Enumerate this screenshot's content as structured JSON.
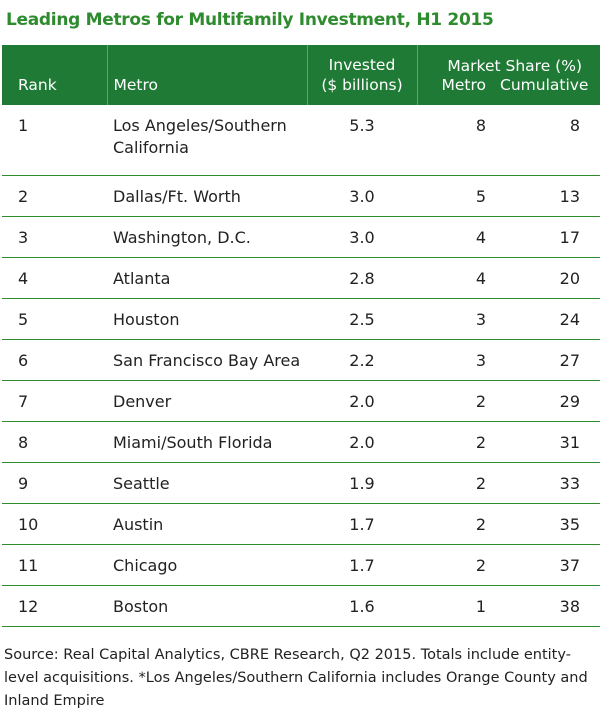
{
  "title": "Leading Metros for Multifamily Investment, H1 2015",
  "headers": {
    "rank": "Rank",
    "metro": "Metro",
    "invested_line1": "Invested",
    "invested_line2": "($ billions)",
    "market_share_group": "Market Share (%)",
    "market_share_metro": "Metro",
    "market_share_cumulative": "Cumulative"
  },
  "rows": [
    {
      "rank": "1",
      "metro": "Los Angeles/Southern California",
      "invested": "5.3",
      "share_metro": "8",
      "share_cumulative": "8"
    },
    {
      "rank": "2",
      "metro": "Dallas/Ft. Worth",
      "invested": "3.0",
      "share_metro": "5",
      "share_cumulative": "13"
    },
    {
      "rank": "3",
      "metro": "Washington, D.C.",
      "invested": "3.0",
      "share_metro": "4",
      "share_cumulative": "17"
    },
    {
      "rank": "4",
      "metro": "Atlanta",
      "invested": "2.8",
      "share_metro": "4",
      "share_cumulative": "20"
    },
    {
      "rank": "5",
      "metro": "Houston",
      "invested": "2.5",
      "share_metro": "3",
      "share_cumulative": "24"
    },
    {
      "rank": "6",
      "metro": "San Francisco Bay Area",
      "invested": "2.2",
      "share_metro": "3",
      "share_cumulative": "27"
    },
    {
      "rank": "7",
      "metro": "Denver",
      "invested": "2.0",
      "share_metro": "2",
      "share_cumulative": "29"
    },
    {
      "rank": "8",
      "metro": "Miami/South Florida",
      "invested": "2.0",
      "share_metro": "2",
      "share_cumulative": "31"
    },
    {
      "rank": "9",
      "metro": "Seattle",
      "invested": "1.9",
      "share_metro": "2",
      "share_cumulative": "33"
    },
    {
      "rank": "10",
      "metro": "Austin",
      "invested": "1.7",
      "share_metro": "2",
      "share_cumulative": "35"
    },
    {
      "rank": "11",
      "metro": "Chicago",
      "invested": "1.7",
      "share_metro": "2",
      "share_cumulative": "37"
    },
    {
      "rank": "12",
      "metro": "Boston",
      "invested": "1.6",
      "share_metro": "1",
      "share_cumulative": "38"
    }
  ],
  "footnote": "Source: Real Capital Analytics, CBRE Research, Q2 2015. Totals include entity-level acquisitions. *Los Angeles/Southern California includes Orange County and Inland Empire",
  "colors": {
    "title": "#2e8b2e",
    "header_bg": "#1f7a35",
    "header_text": "#ffffff",
    "row_divider": "#2e8b2e"
  },
  "chart_data": {
    "type": "table",
    "title": "Leading Metros for Multifamily Investment, H1 2015",
    "columns": [
      "Rank",
      "Metro",
      "Invested ($ billions)",
      "Market Share (%) Metro",
      "Market Share (%) Cumulative"
    ],
    "rows": [
      [
        1,
        "Los Angeles/Southern California",
        5.3,
        8,
        8
      ],
      [
        2,
        "Dallas/Ft. Worth",
        3.0,
        5,
        13
      ],
      [
        3,
        "Washington, D.C.",
        3.0,
        4,
        17
      ],
      [
        4,
        "Atlanta",
        2.8,
        4,
        20
      ],
      [
        5,
        "Houston",
        2.5,
        3,
        24
      ],
      [
        6,
        "San Francisco Bay Area",
        2.2,
        3,
        27
      ],
      [
        7,
        "Denver",
        2.0,
        2,
        29
      ],
      [
        8,
        "Miami/South Florida",
        2.0,
        2,
        31
      ],
      [
        9,
        "Seattle",
        1.9,
        2,
        33
      ],
      [
        10,
        "Austin",
        1.7,
        2,
        35
      ],
      [
        11,
        "Chicago",
        1.7,
        2,
        37
      ],
      [
        12,
        "Boston",
        1.6,
        1,
        38
      ]
    ]
  }
}
